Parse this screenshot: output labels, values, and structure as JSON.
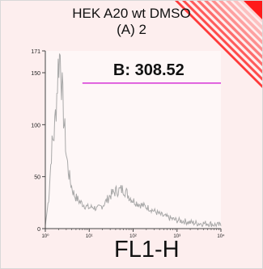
{
  "title": {
    "line1": "HEK A20 wt DMSO",
    "line2": "(A) 2"
  },
  "colors": {
    "background": "#fdeeee",
    "corner_accent": "#ff1a1a",
    "histogram": "#a9a9a9",
    "gate": "#d633d6",
    "axis": "#444444"
  },
  "gate": {
    "label": "B: 308.52",
    "x_range": [
      7,
      10000
    ],
    "level": 140
  },
  "chart_data": {
    "type": "area",
    "title": "",
    "xlabel": "FL1-H",
    "ylabel": "",
    "x_scale": "log",
    "xlim": [
      1,
      10000
    ],
    "ylim": [
      0,
      171
    ],
    "x_ticks": [
      1,
      10,
      100,
      1000,
      10000
    ],
    "x_tick_labels": [
      "10⁰",
      "10¹",
      "10²",
      "10³",
      "10⁴"
    ],
    "y_ticks": [
      0,
      50,
      100,
      150,
      171
    ],
    "y_tick_labels": [
      "0",
      "50",
      "100",
      "150",
      "171"
    ],
    "grid": false,
    "series": [
      {
        "x": [
          1.0,
          1.2,
          1.4,
          1.6,
          1.8,
          2.0,
          2.2,
          2.4,
          2.6,
          2.8,
          3.0,
          3.3,
          3.6,
          4.0,
          4.5,
          5.0,
          6.0,
          7.0,
          8.0,
          10,
          12,
          15,
          20,
          25,
          30,
          40,
          50,
          60,
          70,
          80,
          100,
          130,
          170,
          220,
          300,
          400,
          500,
          600,
          800,
          1000,
          1500,
          2000,
          3000,
          5000,
          7000,
          10000
        ],
        "y": [
          3,
          30,
          78,
          92,
          125,
          162,
          168,
          135,
          110,
          92,
          72,
          58,
          48,
          40,
          33,
          30,
          26,
          24,
          22,
          20,
          21,
          19,
          22,
          27,
          32,
          36,
          37,
          38,
          35,
          31,
          27,
          24,
          22,
          20,
          17,
          14,
          12,
          11,
          9,
          8,
          7,
          6,
          5,
          5,
          4,
          3
        ]
      }
    ]
  }
}
